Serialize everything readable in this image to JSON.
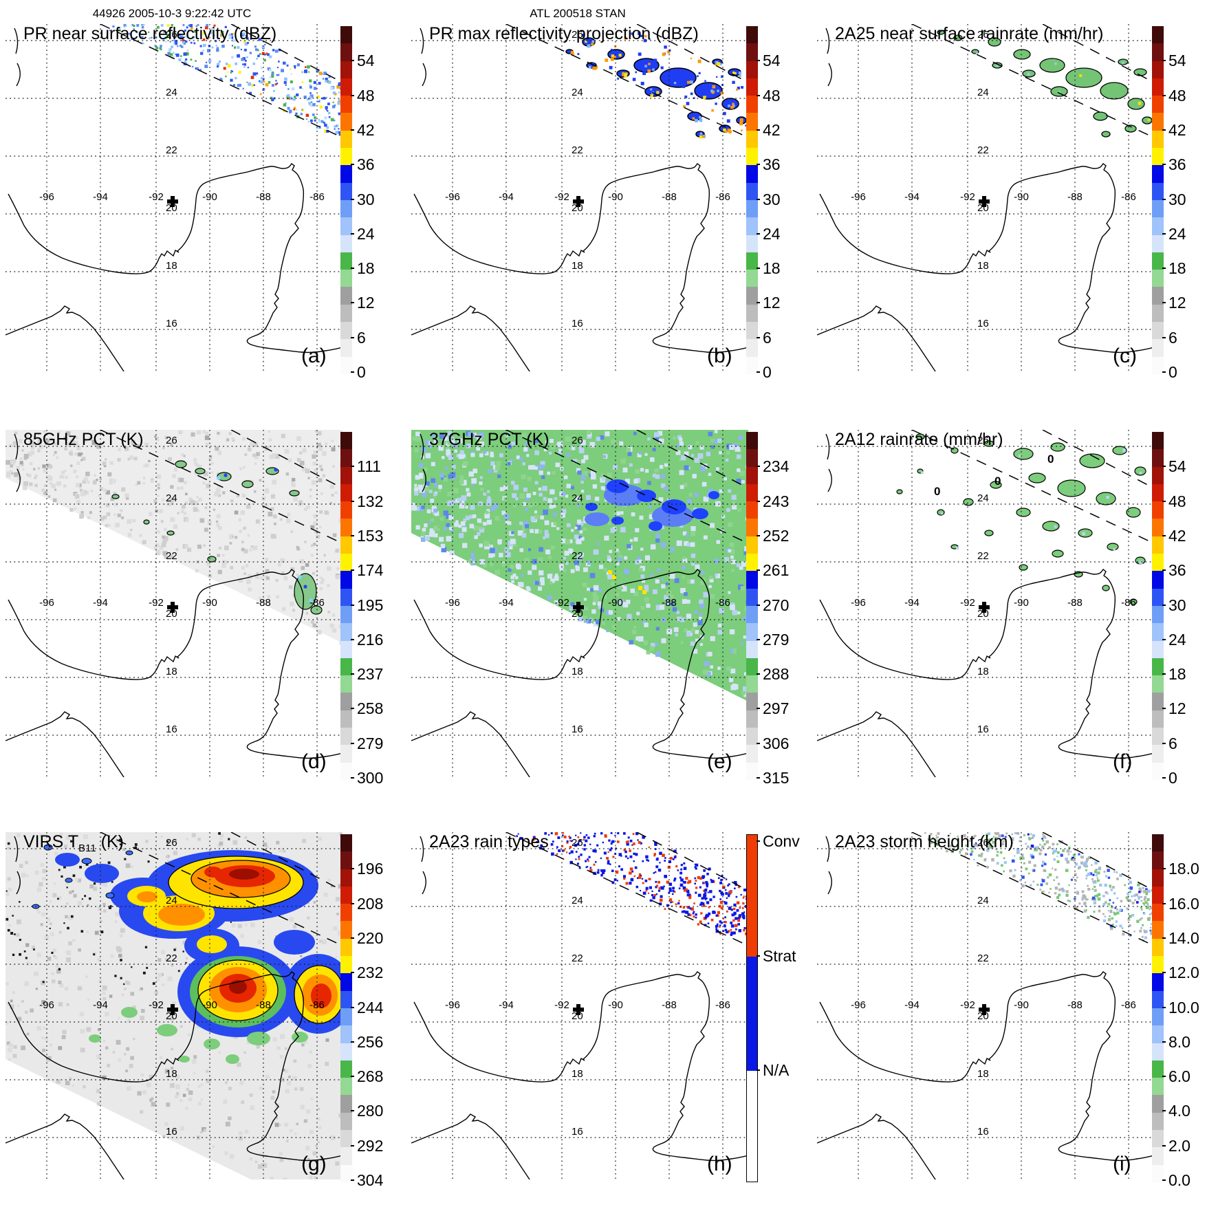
{
  "header": {
    "left_title": "44926 2005-10-3 9:22:42 UTC",
    "center_title": "ATL 200518 STAN"
  },
  "axes": {
    "lon_labels": [
      "-96",
      "-94",
      "-92",
      "-90",
      "-88",
      "-86"
    ],
    "lat_labels": [
      "26",
      "24",
      "22",
      "20",
      "18",
      "16"
    ]
  },
  "colors": {
    "scale_top_to_bottom": [
      "#3f0a0a",
      "#6e1010",
      "#a11208",
      "#cf1c04",
      "#f04000",
      "#fb7500",
      "#ffc800",
      "#fff200",
      "#0008e6",
      "#2e55f4",
      "#6f9ef7",
      "#9fc3fa",
      "#d6e4fb",
      "#49b649",
      "#93d893",
      "#9f9f9f",
      "#bdbdbd",
      "#d9d9d9",
      "#eeeeee",
      "#fbfbfb"
    ],
    "rain_types": {
      "conv": "#f03b02",
      "strat": "#0a18e6",
      "na": "#ffffff"
    },
    "coastline": "#000000",
    "grid": "#1a1a1a"
  },
  "panels": [
    {
      "id": "a",
      "letter": "(a)",
      "title_prefix": "PR near surface reflectivity (dBZ)",
      "title_sub": "",
      "title_suffix": "",
      "colorbar": {
        "kind": "scale",
        "ticks": [
          "54",
          "48",
          "42",
          "36",
          "30",
          "24",
          "18",
          "12",
          "6",
          "0"
        ]
      }
    },
    {
      "id": "b",
      "letter": "(b)",
      "title_prefix": "PR max reflectivity projection (dBZ)",
      "title_sub": "",
      "title_suffix": "",
      "colorbar": {
        "kind": "scale",
        "ticks": [
          "54",
          "48",
          "42",
          "36",
          "30",
          "24",
          "18",
          "12",
          "6",
          "0"
        ]
      }
    },
    {
      "id": "c",
      "letter": "(c)",
      "title_prefix": "2A25 near surface rainrate (mm/hr)",
      "title_sub": "",
      "title_suffix": "",
      "colorbar": {
        "kind": "scale",
        "ticks": [
          "54",
          "48",
          "42",
          "36",
          "30",
          "24",
          "18",
          "12",
          "6",
          "0"
        ]
      }
    },
    {
      "id": "d",
      "letter": "(d)",
      "title_prefix": "85GHz PCT (K)",
      "title_sub": "",
      "title_suffix": "",
      "colorbar": {
        "kind": "scale",
        "ticks": [
          "111",
          "132",
          "153",
          "174",
          "195",
          "216",
          "237",
          "258",
          "279",
          "300"
        ]
      }
    },
    {
      "id": "e",
      "letter": "(e)",
      "title_prefix": "37GHz PCT (K)",
      "title_sub": "",
      "title_suffix": "",
      "colorbar": {
        "kind": "scale",
        "ticks": [
          "234",
          "243",
          "252",
          "261",
          "270",
          "279",
          "288",
          "297",
          "306",
          "315"
        ]
      }
    },
    {
      "id": "f",
      "letter": "(f)",
      "title_prefix": "2A12 rainrate (mm/hr)",
      "title_sub": "",
      "title_suffix": "",
      "colorbar": {
        "kind": "scale",
        "ticks": [
          "54",
          "48",
          "42",
          "36",
          "30",
          "24",
          "18",
          "12",
          "6",
          "0"
        ]
      },
      "contour_labels": [
        "0",
        "0",
        "0"
      ]
    },
    {
      "id": "g",
      "letter": "(g)",
      "title_prefix": "VIRS T",
      "title_sub": "B11",
      "title_suffix": " (K)",
      "colorbar": {
        "kind": "scale",
        "ticks": [
          "196",
          "208",
          "220",
          "232",
          "244",
          "256",
          "268",
          "280",
          "292",
          "304"
        ]
      }
    },
    {
      "id": "h",
      "letter": "(h)",
      "title_prefix": "2A23 rain types",
      "title_sub": "",
      "title_suffix": "",
      "colorbar": {
        "kind": "categorical",
        "categories": [
          "Conv",
          "Strat",
          "N/A"
        ]
      }
    },
    {
      "id": "i",
      "letter": "(i)",
      "title_prefix": "2A23 storm height (km)",
      "title_sub": "",
      "title_suffix": "",
      "colorbar": {
        "kind": "scale",
        "ticks": [
          "18.0",
          "16.0",
          "14.0",
          "12.0",
          "10.0",
          "8.0",
          "6.0",
          "4.0",
          "2.0",
          "0.0"
        ]
      }
    }
  ],
  "chart_data": {
    "type": "heatmap",
    "layout": "3x3 satellite swath map panels over Gulf of Mexico / Yucatan",
    "lon_range": [
      -97.5,
      -85.3
    ],
    "lat_range": [
      14.5,
      26.6
    ],
    "grid_lons": [
      -96,
      -94,
      -92,
      -90,
      -88,
      -86
    ],
    "grid_lats": [
      16,
      18,
      20,
      22,
      24,
      26
    ],
    "marker_lonlat": [
      -91.5,
      20.3
    ],
    "annotations": {
      "dashed_lines": "PR swath edges",
      "plus_marker": "storm center"
    },
    "panels": [
      {
        "label": "(a)",
        "title": "PR near surface reflectivity (dBZ)",
        "units": "dBZ",
        "colorbar_ticks": [
          54,
          48,
          42,
          36,
          30,
          24,
          18,
          12,
          6,
          0
        ]
      },
      {
        "label": "(b)",
        "title": "PR max reflectivity projection (dBZ)",
        "units": "dBZ",
        "colorbar_ticks": [
          54,
          48,
          42,
          36,
          30,
          24,
          18,
          12,
          6,
          0
        ]
      },
      {
        "label": "(c)",
        "title": "2A25 near surface rainrate (mm/hr)",
        "units": "mm/hr",
        "colorbar_ticks": [
          54,
          48,
          42,
          36,
          30,
          24,
          18,
          12,
          6,
          0
        ]
      },
      {
        "label": "(d)",
        "title": "85GHz PCT (K)",
        "units": "K",
        "colorbar_ticks": [
          111,
          132,
          153,
          174,
          195,
          216,
          237,
          258,
          279,
          300
        ]
      },
      {
        "label": "(e)",
        "title": "37GHz PCT (K)",
        "units": "K",
        "colorbar_ticks": [
          234,
          243,
          252,
          261,
          270,
          279,
          288,
          297,
          306,
          315
        ]
      },
      {
        "label": "(f)",
        "title": "2A12 rainrate (mm/hr)",
        "units": "mm/hr",
        "colorbar_ticks": [
          54,
          48,
          42,
          36,
          30,
          24,
          18,
          12,
          6,
          0
        ],
        "contour_labels": [
          0,
          0,
          0
        ]
      },
      {
        "label": "(g)",
        "title": "VIRS TB11 (K)",
        "units": "K",
        "colorbar_ticks": [
          196,
          208,
          220,
          232,
          244,
          256,
          268,
          280,
          292,
          304
        ]
      },
      {
        "label": "(h)",
        "title": "2A23 rain types",
        "categories": [
          "Conv",
          "Strat",
          "N/A"
        ]
      },
      {
        "label": "(i)",
        "title": "2A23 storm height (km)",
        "units": "km",
        "colorbar_ticks": [
          18.0,
          16.0,
          14.0,
          12.0,
          10.0,
          8.0,
          6.0,
          4.0,
          2.0,
          0.0
        ]
      }
    ]
  }
}
